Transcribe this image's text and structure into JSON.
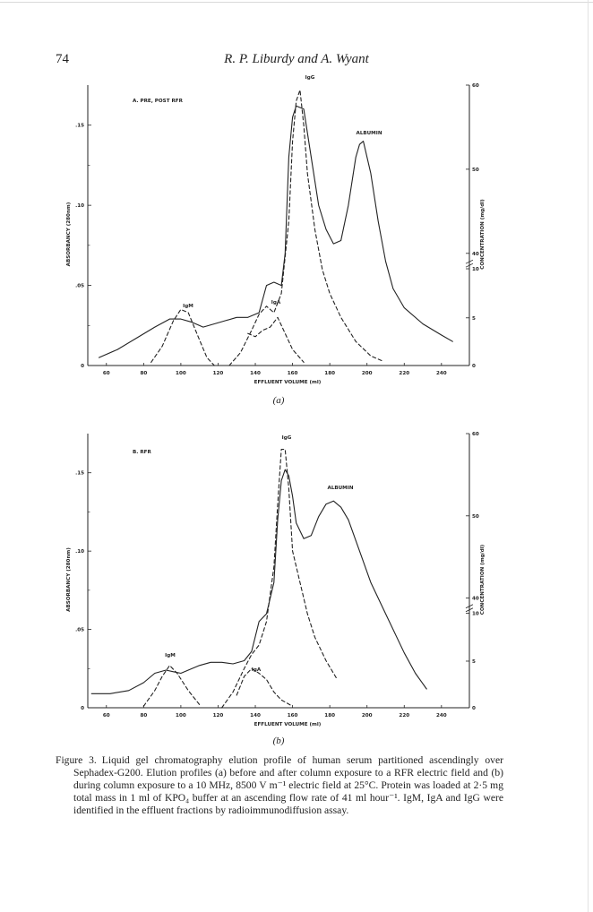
{
  "page": {
    "number": "74",
    "running_head": "R. P. Liburdy and A. Wyant"
  },
  "caption": {
    "label": "Figure 3.",
    "text": "Liquid gel chromatography elution profile of human serum partitioned ascendingly over Sephadex-G200. Elution profiles (a) before and after column exposure to a RFR electric field and (b) during column exposure to a 10 MHz, 8500 V m⁻¹ electric field at 25°C. Protein was loaded at 2·5 mg total mass in 1 ml of KPO₄ buffer at an ascending flow rate of 41 ml hour⁻¹. IgM, IgA and IgG were identified in the effluent fractions by radioimmunodiffusion assay."
  },
  "chart_data": [
    {
      "type": "line",
      "panel_title": "A. PRE, POST RFR",
      "sublabel": "(a)",
      "xlabel": "EFFLUENT  VOLUME (ml)",
      "ylabel": "ABSORBANCY (280nm)",
      "y2label": "CONCENTRATION (mg/dl)",
      "xlim": [
        50,
        255
      ],
      "ylim": [
        0,
        0.175
      ],
      "x_ticks": [
        "60",
        "80",
        "100",
        "120",
        "140",
        "160",
        "180",
        "200",
        "220",
        "240"
      ],
      "y_ticks": [
        "0",
        ".05",
        ".10",
        ".15"
      ],
      "y2_ticks": [
        "0",
        "5",
        "10",
        "40",
        "50",
        "60"
      ],
      "annotations": [
        "IgM",
        "IgA",
        "IgG",
        "ALBUMIN"
      ],
      "series": [
        {
          "style": "solid",
          "x": [
            56,
            66,
            76,
            86,
            94,
            100,
            106,
            112,
            118,
            124,
            130,
            136,
            142,
            146,
            150,
            154,
            156,
            158,
            160,
            162,
            166,
            170,
            174,
            178,
            182,
            186,
            190,
            194,
            196,
            198,
            202,
            206,
            210,
            214,
            220,
            230,
            240,
            246
          ],
          "y": [
            0.005,
            0.01,
            0.017,
            0.024,
            0.029,
            0.029,
            0.027,
            0.024,
            0.026,
            0.028,
            0.03,
            0.03,
            0.033,
            0.05,
            0.052,
            0.05,
            0.07,
            0.13,
            0.155,
            0.162,
            0.16,
            0.13,
            0.1,
            0.085,
            0.076,
            0.078,
            0.1,
            0.13,
            0.138,
            0.14,
            0.12,
            0.09,
            0.065,
            0.048,
            0.036,
            0.026,
            0.019,
            0.015
          ]
        },
        {
          "style": "dashed",
          "x": [
            84,
            90,
            96,
            100,
            104,
            110,
            114,
            118
          ],
          "y": [
            0.002,
            0.012,
            0.028,
            0.035,
            0.033,
            0.016,
            0.005,
            0.0
          ]
        },
        {
          "style": "dashed",
          "x": [
            126,
            132,
            138,
            142,
            146,
            150,
            154,
            158,
            160,
            162,
            164,
            166,
            168,
            172,
            176,
            180,
            186,
            194,
            202,
            208
          ],
          "y": [
            0.0,
            0.008,
            0.022,
            0.032,
            0.037,
            0.033,
            0.045,
            0.09,
            0.14,
            0.165,
            0.172,
            0.15,
            0.12,
            0.085,
            0.06,
            0.045,
            0.03,
            0.015,
            0.006,
            0.003
          ]
        },
        {
          "style": "dashed",
          "x": [
            136,
            140,
            144,
            148,
            152,
            156,
            160,
            166
          ],
          "y": [
            0.02,
            0.018,
            0.022,
            0.024,
            0.03,
            0.02,
            0.01,
            0.002
          ]
        }
      ]
    },
    {
      "type": "line",
      "panel_title": "B. RFR",
      "sublabel": "(b)",
      "xlabel": "EFFLUENT  VOLUME (ml)",
      "ylabel": "ABSORBANCY (280nm)",
      "y2label": "CONCENTRATION (mg/dl)",
      "xlim": [
        50,
        255
      ],
      "ylim": [
        0,
        0.175
      ],
      "x_ticks": [
        "60",
        "80",
        "100",
        "120",
        "140",
        "160",
        "180",
        "200",
        "220",
        "240"
      ],
      "y_ticks": [
        "0",
        ".05",
        ".10",
        ".15"
      ],
      "y2_ticks": [
        "0",
        "5",
        "10",
        "40",
        "50",
        "60"
      ],
      "annotations": [
        "IgM",
        "IgA",
        "IgG",
        "ALBUMIN"
      ],
      "series": [
        {
          "style": "solid",
          "x": [
            52,
            62,
            72,
            80,
            86,
            92,
            96,
            100,
            104,
            110,
            116,
            122,
            128,
            134,
            138,
            142,
            146,
            150,
            152,
            154,
            156,
            158,
            160,
            162,
            166,
            170,
            174,
            178,
            182,
            186,
            190,
            196,
            202,
            210,
            220,
            226,
            232
          ],
          "y": [
            0.009,
            0.009,
            0.011,
            0.016,
            0.022,
            0.024,
            0.023,
            0.022,
            0.024,
            0.027,
            0.029,
            0.029,
            0.028,
            0.03,
            0.036,
            0.055,
            0.06,
            0.08,
            0.12,
            0.145,
            0.152,
            0.148,
            0.135,
            0.118,
            0.108,
            0.11,
            0.122,
            0.13,
            0.132,
            0.128,
            0.12,
            0.1,
            0.08,
            0.06,
            0.035,
            0.022,
            0.012
          ]
        },
        {
          "style": "dashed",
          "x": [
            80,
            86,
            90,
            94,
            98,
            104,
            110
          ],
          "y": [
            0.001,
            0.011,
            0.02,
            0.027,
            0.022,
            0.011,
            0.002
          ]
        },
        {
          "style": "dashed",
          "x": [
            122,
            128,
            134,
            138,
            142,
            146,
            150,
            152,
            154,
            156,
            158,
            160,
            164,
            168,
            172,
            178,
            184
          ],
          "y": [
            0.0,
            0.01,
            0.025,
            0.034,
            0.04,
            0.055,
            0.09,
            0.13,
            0.165,
            0.165,
            0.14,
            0.1,
            0.08,
            0.06,
            0.045,
            0.03,
            0.018
          ]
        },
        {
          "style": "dashed",
          "x": [
            130,
            134,
            138,
            142,
            146,
            150,
            154,
            160
          ],
          "y": [
            0.008,
            0.02,
            0.025,
            0.022,
            0.018,
            0.01,
            0.005,
            0.001
          ]
        }
      ]
    }
  ]
}
